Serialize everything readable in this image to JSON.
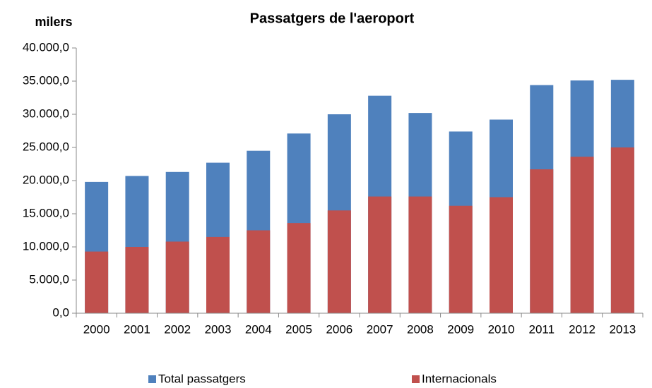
{
  "chart_data": {
    "type": "bar",
    "title": "Passatgers de l'aeroport",
    "ylabel": "milers",
    "categories": [
      "2000",
      "2001",
      "2002",
      "2003",
      "2004",
      "2005",
      "2006",
      "2007",
      "2008",
      "2009",
      "2010",
      "2011",
      "2012",
      "2013"
    ],
    "series": [
      {
        "name": "Total passatgers",
        "color": "#4f81bd",
        "values": [
          19800,
          20700,
          21300,
          22700,
          24500,
          27100,
          30000,
          32800,
          30200,
          27400,
          29200,
          34400,
          35100,
          35200
        ]
      },
      {
        "name": "Internacionals",
        "color": "#c0504d",
        "values": [
          9300,
          10000,
          10800,
          11500,
          12500,
          13600,
          15500,
          17600,
          17600,
          16200,
          17500,
          21700,
          23600,
          25000
        ]
      }
    ],
    "ylim": [
      0,
      40000
    ],
    "yticks": [
      {
        "value": 0,
        "label": "0,0"
      },
      {
        "value": 5000,
        "label": "5.000,0"
      },
      {
        "value": 10000,
        "label": "10.000,0"
      },
      {
        "value": 15000,
        "label": "15.000,0"
      },
      {
        "value": 20000,
        "label": "20.000,0"
      },
      {
        "value": 25000,
        "label": "25.000,0"
      },
      {
        "value": 30000,
        "label": "30.000,0"
      },
      {
        "value": 35000,
        "label": "35.000,0"
      },
      {
        "value": 40000,
        "label": "40.000,0"
      }
    ],
    "legend": "bottom"
  }
}
